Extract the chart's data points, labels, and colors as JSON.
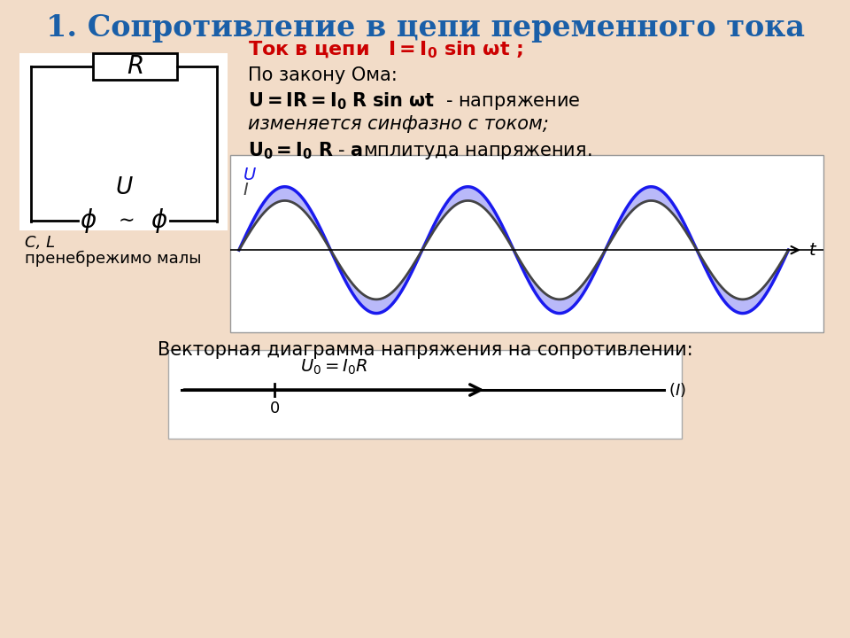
{
  "title": "1. Сопротивление в цепи переменного тока",
  "title_color": "#1a5fa8",
  "bg_color": "#f2dcc8",
  "wave_color_U": "#1a1aee",
  "wave_color_I": "#444444",
  "small_text1": "C, L",
  "small_text2": "пренебрежимо малы",
  "wave_label_U": "U",
  "wave_label_t": "t",
  "wave_label_I": "I",
  "vector_title": "Векторная диаграмма напряжения на сопротивлении:",
  "circuit_lw": 2.0
}
